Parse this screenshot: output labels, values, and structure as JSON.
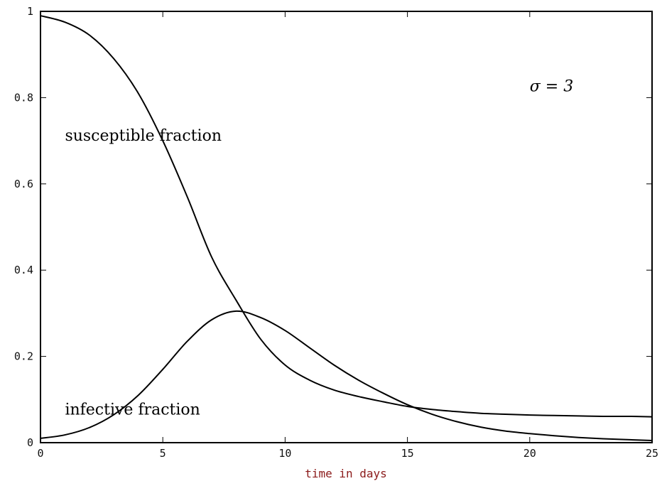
{
  "chart_data": {
    "type": "line",
    "title": "",
    "xlabel": "time in days",
    "ylabel": "",
    "xlim": [
      0,
      25
    ],
    "ylim": [
      0,
      1
    ],
    "x_ticks": [
      0,
      5,
      10,
      15,
      20,
      25
    ],
    "y_ticks": [
      0,
      0.2,
      0.4,
      0.6,
      0.8,
      1
    ],
    "x_tick_labels": [
      "0",
      "5",
      "10",
      "15",
      "20",
      "25"
    ],
    "y_tick_labels": [
      "0",
      "0.2",
      "0.4",
      "0.6",
      "0.8",
      "1"
    ],
    "grid": false,
    "legend": "none",
    "colors": {
      "line": "#000000",
      "xlabel": "#8b1a1a"
    },
    "annotations": [
      {
        "text": "susceptible fraction",
        "x": 1.0,
        "y": 0.7
      },
      {
        "text": "infective fraction",
        "x": 1.0,
        "y": 0.065
      },
      {
        "text": "σ = 3",
        "x": 20.0,
        "y": 0.815
      }
    ],
    "series": [
      {
        "x": [
          0,
          1,
          2,
          3,
          4,
          5,
          6,
          7,
          8,
          9,
          10,
          11,
          12,
          13,
          14,
          15,
          16,
          17,
          18,
          19,
          20,
          21,
          22,
          23,
          24,
          25
        ],
        "values": [
          0.99,
          0.975,
          0.945,
          0.89,
          0.81,
          0.7,
          0.57,
          0.43,
          0.33,
          0.24,
          0.18,
          0.145,
          0.122,
          0.107,
          0.095,
          0.084,
          0.077,
          0.072,
          0.068,
          0.066,
          0.064,
          0.063,
          0.062,
          0.061,
          0.061,
          0.06
        ]
      },
      {
        "x": [
          0,
          1,
          2,
          3,
          4,
          5,
          6,
          7,
          8,
          9,
          10,
          11,
          12,
          13,
          14,
          15,
          16,
          17,
          18,
          19,
          20,
          21,
          22,
          23,
          24,
          25
        ],
        "values": [
          0.01,
          0.018,
          0.035,
          0.065,
          0.11,
          0.17,
          0.235,
          0.285,
          0.305,
          0.29,
          0.26,
          0.22,
          0.18,
          0.145,
          0.115,
          0.088,
          0.066,
          0.049,
          0.036,
          0.027,
          0.021,
          0.016,
          0.012,
          0.009,
          0.007,
          0.005
        ]
      }
    ]
  }
}
